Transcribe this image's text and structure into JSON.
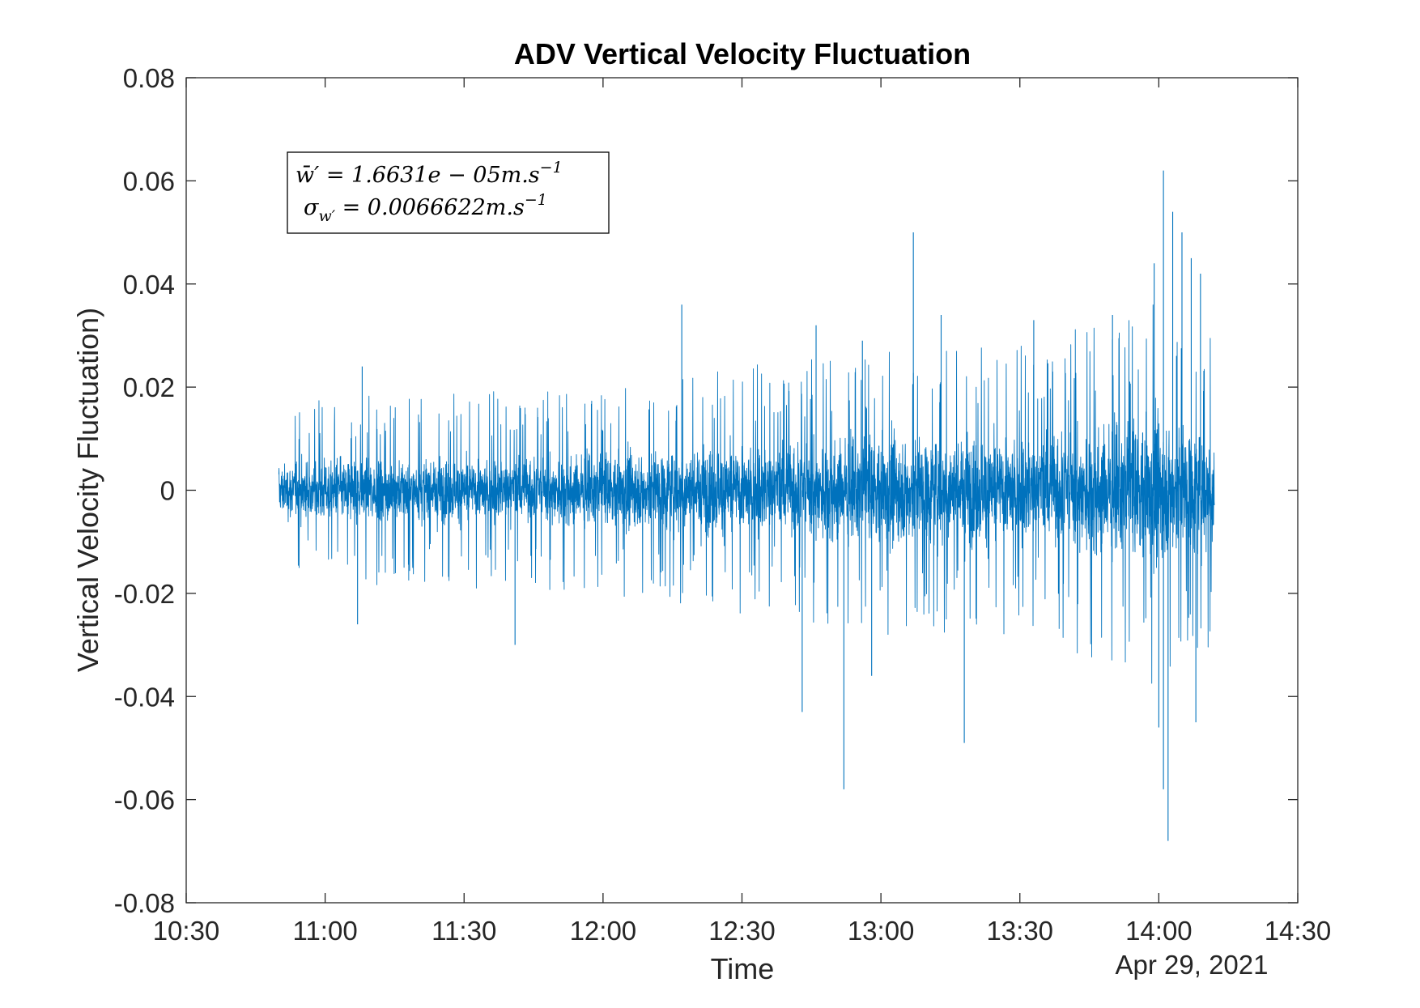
{
  "chart_data": {
    "type": "line",
    "title": "ADV Vertical Velocity Fluctuation",
    "xlabel": "Time",
    "ylabel": "Vertical Velocity Fluctuation)",
    "x_date_label": "Apr 29, 2021",
    "xlim": [
      "10:30",
      "14:30"
    ],
    "ylim": [
      -0.08,
      0.08
    ],
    "x_ticks": [
      "10:30",
      "11:00",
      "11:30",
      "12:00",
      "12:30",
      "13:00",
      "13:30",
      "14:00",
      "14:30"
    ],
    "y_ticks": [
      0.08,
      0.06,
      0.04,
      0.02,
      0,
      -0.02,
      -0.04,
      -0.06,
      -0.08
    ],
    "y_tick_labels": [
      "0.08",
      "0.06",
      "0.04",
      "0.02",
      "0",
      "-0.02",
      "-0.04",
      "-0.06",
      "-0.08"
    ],
    "grid": false,
    "legend_position": "top-left",
    "series": [
      {
        "color": "#0072BD",
        "x_range": [
          "10:50",
          "14:12"
        ],
        "envelope": [
          {
            "x": "10:50",
            "core": 0.006,
            "spike": 0.014
          },
          {
            "x": "11:00",
            "core": 0.007,
            "spike": 0.018
          },
          {
            "x": "11:30",
            "core": 0.007,
            "spike": 0.019
          },
          {
            "x": "12:00",
            "core": 0.008,
            "spike": 0.02
          },
          {
            "x": "12:30",
            "core": 0.01,
            "spike": 0.024
          },
          {
            "x": "13:00",
            "core": 0.012,
            "spike": 0.028
          },
          {
            "x": "13:30",
            "core": 0.012,
            "spike": 0.028
          },
          {
            "x": "14:00",
            "core": 0.016,
            "spike": 0.038
          },
          {
            "x": "14:12",
            "core": 0.013,
            "spike": 0.03
          }
        ],
        "peaks": [
          {
            "x": "11:08",
            "y": 0.024
          },
          {
            "x": "11:07",
            "y": -0.026
          },
          {
            "x": "11:41",
            "y": -0.03
          },
          {
            "x": "12:17",
            "y": 0.036
          },
          {
            "x": "12:43",
            "y": -0.043
          },
          {
            "x": "12:46",
            "y": 0.032
          },
          {
            "x": "12:52",
            "y": -0.058
          },
          {
            "x": "12:56",
            "y": 0.029
          },
          {
            "x": "12:58",
            "y": -0.036
          },
          {
            "x": "13:07",
            "y": 0.05
          },
          {
            "x": "13:13",
            "y": 0.034
          },
          {
            "x": "13:18",
            "y": -0.049
          },
          {
            "x": "13:33",
            "y": 0.033
          },
          {
            "x": "13:50",
            "y": 0.034
          },
          {
            "x": "13:59",
            "y": 0.044
          },
          {
            "x": "14:00",
            "y": -0.046
          },
          {
            "x": "14:01",
            "y": 0.062
          },
          {
            "x": "14:01",
            "y": -0.058
          },
          {
            "x": "14:02",
            "y": -0.068
          },
          {
            "x": "14:03",
            "y": 0.054
          },
          {
            "x": "14:05",
            "y": 0.05
          },
          {
            "x": "14:07",
            "y": 0.045
          },
          {
            "x": "14:08",
            "y": -0.045
          },
          {
            "x": "14:09",
            "y": 0.042
          }
        ]
      }
    ],
    "annotation": {
      "mean_label": "w̄′ = 1.6631e − 05m.s",
      "mean_exp": "−1",
      "std_label": "σ",
      "std_sub": "w′",
      "std_rest": " = 0.0066622m.s",
      "std_exp": "−1"
    }
  }
}
